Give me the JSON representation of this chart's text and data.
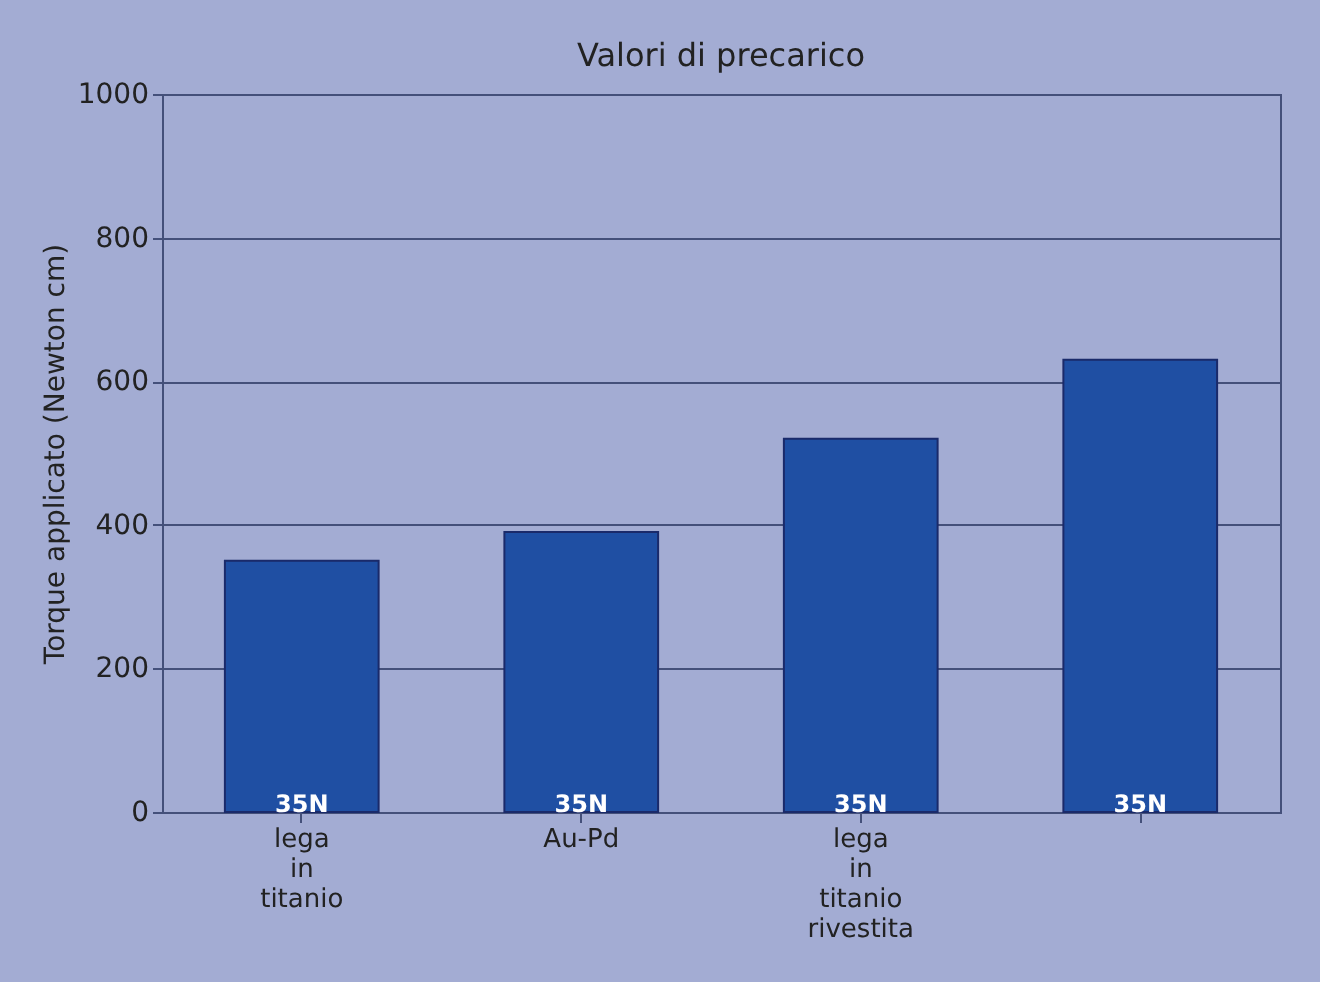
{
  "chart_data": {
    "type": "bar",
    "title": "Valori di precarico",
    "ylabel": "Torque applicato (Newton cm)",
    "categories": [
      "lega in titanio",
      "Au-Pd",
      "lega in titanio rivestita",
      null
    ],
    "values": [
      350,
      390,
      520,
      630
    ],
    "color": "#1f4fa3",
    "ylim": [
      0,
      1000
    ],
    "yticks": [
      0,
      200,
      400,
      600,
      800,
      1000
    ],
    "grid": "y",
    "annotations": [
      "35N",
      "35N",
      "35N",
      "35N"
    ]
  }
}
